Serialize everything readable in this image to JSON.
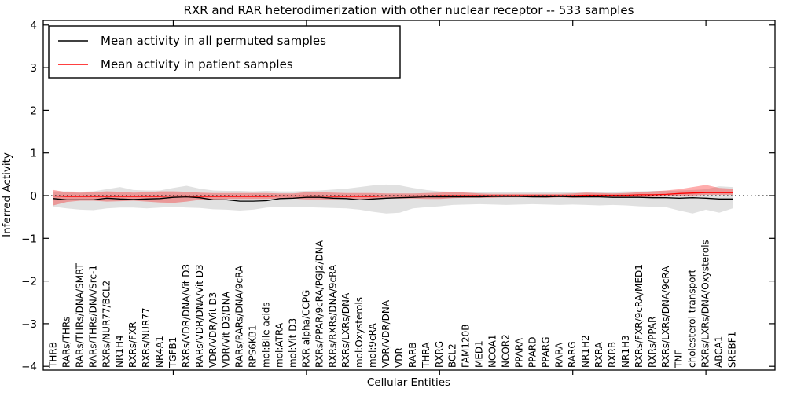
{
  "chart_data": {
    "type": "line",
    "title": "RXR and RAR heterodimerization with other nuclear receptor -- 533 samples",
    "xlabel": "Cellular Entities",
    "ylabel": "Inferred Activity",
    "ylim": [
      -4,
      4
    ],
    "grid": false,
    "background": "#ffffff",
    "ytick_values": [
      4,
      3,
      2,
      1,
      0,
      -1,
      -2,
      -3,
      -4
    ],
    "ytick_labels": [
      "4",
      "3",
      "2",
      "1",
      "0",
      "−1",
      "−2",
      "−3",
      "−4"
    ],
    "x_major_tick_indices": [
      9,
      19,
      29,
      39,
      49
    ],
    "zero_line": {
      "value": 0,
      "style": "dotted",
      "color": "#000000"
    },
    "legend": {
      "position": "upper left",
      "entries": [
        {
          "label": "Mean activity in all permuted samples",
          "color": "#000000"
        },
        {
          "label": "Mean activity in patient samples",
          "color": "#ff0000"
        }
      ]
    },
    "categories": [
      "THRB",
      "RARs/THRs",
      "RARs/THRs/DNA/SMRT",
      "RARs/THRs/DNA/Src-1",
      "RXRs/NUR77/BCL2",
      "NR1H4",
      "RXRs/FXR",
      "RXRs/NUR77",
      "NR4A1",
      "TGFB1",
      "RXRs/VDR/DNA/Vit D3",
      "RARs/VDR/DNA/Vit D3",
      "VDR/VDR/Vit D3",
      "VDR/Vit D3/DNA",
      "RARs/RARs/DNA/9cRA",
      "RPS6KB1",
      "mol:Bile acids",
      "mol:ATRA",
      "mol:Vit D3",
      "RXR alpha/CCPG",
      "RXRs/PPAR/9cRA/PGJ2/DNA",
      "RXRs/RXRs/DNA/9cRA",
      "RXRs/LXRs/DNA",
      "mol:Oxysterols",
      "mol:9cRA",
      "VDR/VDR/DNA",
      "VDR",
      "RARB",
      "THRA",
      "RXRG",
      "BCL2",
      "FAM120B",
      "MED1",
      "NCOA1",
      "NCOR2",
      "PPARA",
      "PPARD",
      "PPARG",
      "RARA",
      "RARG",
      "NR1H2",
      "RXRA",
      "RXRB",
      "NR1H3",
      "RXRs/FXR/9cRA/MED1",
      "RXRs/PPAR",
      "RXRs/LXRs/DNA/9cRA",
      "TNF",
      "cholesterol transport",
      "RXRs/LXRs/DNA/Oxysterols",
      "ABCA1",
      "SREBF1"
    ],
    "series": [
      {
        "name": "Mean activity in all permuted samples",
        "render": "line",
        "color": "#000000",
        "values": [
          -0.07,
          -0.1,
          -0.1,
          -0.1,
          -0.06,
          -0.08,
          -0.09,
          -0.08,
          -0.07,
          -0.04,
          -0.03,
          -0.05,
          -0.1,
          -0.1,
          -0.13,
          -0.13,
          -0.12,
          -0.07,
          -0.06,
          -0.04,
          -0.04,
          -0.06,
          -0.07,
          -0.1,
          -0.08,
          -0.06,
          -0.05,
          -0.04,
          -0.03,
          -0.03,
          -0.03,
          -0.03,
          -0.03,
          -0.02,
          -0.02,
          -0.02,
          -0.03,
          -0.03,
          -0.02,
          -0.03,
          -0.03,
          -0.03,
          -0.04,
          -0.04,
          -0.04,
          -0.05,
          -0.05,
          -0.06,
          -0.05,
          -0.06,
          -0.08,
          -0.08
        ]
      },
      {
        "name": "Mean activity in patient samples",
        "render": "line",
        "color": "#ff0000",
        "values": [
          -0.01,
          -0.02,
          -0.02,
          -0.02,
          -0.02,
          -0.02,
          -0.02,
          -0.02,
          -0.02,
          -0.01,
          -0.01,
          -0.02,
          -0.02,
          -0.02,
          -0.02,
          -0.02,
          -0.02,
          -0.01,
          -0.01,
          -0.01,
          -0.01,
          -0.02,
          -0.02,
          -0.02,
          -0.02,
          -0.01,
          -0.01,
          -0.01,
          -0.01,
          0.0,
          0.0,
          0.0,
          0.0,
          0.0,
          0.0,
          0.0,
          0.0,
          0.0,
          0.0,
          0.0,
          0.01,
          0.01,
          0.01,
          0.01,
          0.02,
          0.02,
          0.03,
          0.05,
          0.06,
          0.07,
          0.07,
          0.07
        ]
      },
      {
        "name": "Permuted samples spread band",
        "render": "band",
        "color": "#b0b0b0",
        "opacity": 0.38,
        "upper": [
          0.1,
          0.1,
          0.09,
          0.1,
          0.15,
          0.2,
          0.13,
          0.12,
          0.12,
          0.18,
          0.23,
          0.16,
          0.12,
          0.11,
          0.11,
          0.1,
          0.11,
          0.1,
          0.1,
          0.11,
          0.12,
          0.14,
          0.16,
          0.2,
          0.24,
          0.26,
          0.24,
          0.18,
          0.13,
          0.1,
          0.09,
          0.09,
          0.08,
          0.08,
          0.08,
          0.08,
          0.08,
          0.08,
          0.08,
          0.08,
          0.09,
          0.09,
          0.09,
          0.1,
          0.1,
          0.11,
          0.11,
          0.12,
          0.13,
          0.15,
          0.22,
          0.2
        ],
        "lower": [
          -0.26,
          -0.3,
          -0.33,
          -0.34,
          -0.3,
          -0.28,
          -0.28,
          -0.3,
          -0.28,
          -0.26,
          -0.28,
          -0.29,
          -0.32,
          -0.33,
          -0.35,
          -0.33,
          -0.28,
          -0.26,
          -0.26,
          -0.27,
          -0.28,
          -0.29,
          -0.3,
          -0.33,
          -0.38,
          -0.42,
          -0.4,
          -0.3,
          -0.27,
          -0.25,
          -0.22,
          -0.21,
          -0.2,
          -0.21,
          -0.22,
          -0.21,
          -0.2,
          -0.21,
          -0.22,
          -0.21,
          -0.22,
          -0.23,
          -0.22,
          -0.23,
          -0.25,
          -0.26,
          -0.27,
          -0.35,
          -0.42,
          -0.33,
          -0.4,
          -0.3
        ]
      },
      {
        "name": "Patient samples spread band",
        "render": "band",
        "color": "#ff0000",
        "opacity": 0.32,
        "upper": [
          0.13,
          0.08,
          0.07,
          0.08,
          0.1,
          0.09,
          0.07,
          0.08,
          0.1,
          0.1,
          0.09,
          0.07,
          0.06,
          0.06,
          0.06,
          0.06,
          0.06,
          0.05,
          0.05,
          0.08,
          0.08,
          0.07,
          0.06,
          0.06,
          0.06,
          0.05,
          0.05,
          0.05,
          0.06,
          0.07,
          0.09,
          0.07,
          0.05,
          0.04,
          0.04,
          0.04,
          0.04,
          0.04,
          0.04,
          0.05,
          0.07,
          0.06,
          0.05,
          0.06,
          0.08,
          0.1,
          0.12,
          0.15,
          0.2,
          0.25,
          0.18,
          0.16
        ],
        "lower": [
          -0.23,
          -0.15,
          -0.12,
          -0.12,
          -0.14,
          -0.13,
          -0.12,
          -0.14,
          -0.16,
          -0.17,
          -0.14,
          -0.1,
          -0.09,
          -0.08,
          -0.08,
          -0.08,
          -0.08,
          -0.07,
          -0.07,
          -0.09,
          -0.09,
          -0.09,
          -0.08,
          -0.08,
          -0.08,
          -0.07,
          -0.07,
          -0.07,
          -0.08,
          -0.08,
          -0.06,
          -0.05,
          -0.05,
          -0.05,
          -0.04,
          -0.04,
          -0.04,
          -0.05,
          -0.04,
          -0.05,
          -0.04,
          -0.04,
          -0.04,
          -0.04,
          -0.03,
          -0.03,
          -0.02,
          -0.01,
          0.0,
          0.02,
          0.02,
          0.02
        ]
      }
    ]
  }
}
